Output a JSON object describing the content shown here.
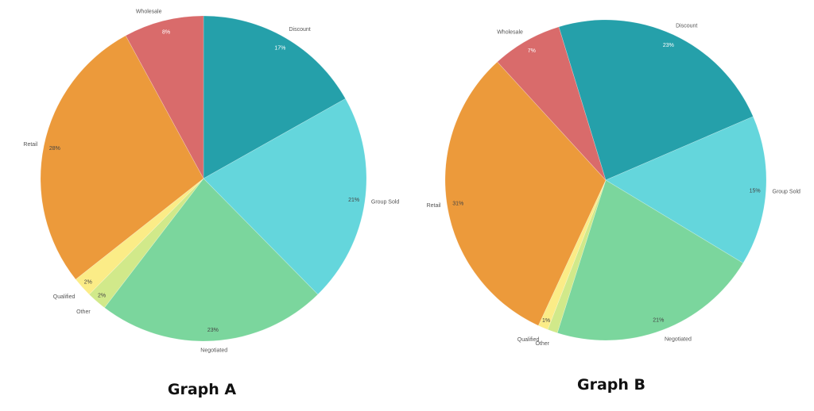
{
  "colors": {
    "Discount": "#25a0aa",
    "Group Sold": "#64d6dc",
    "Negotiated": "#7bd69d",
    "Other": "#d1e98a",
    "Qualified": "#fbec87",
    "Retail": "#ec9a3b",
    "Wholesale": "#d96b6b"
  },
  "chart_data": [
    {
      "type": "pie",
      "caption": "Graph A",
      "start_angle_deg": 0,
      "direction": "clockwise",
      "slices": [
        {
          "label": "Discount",
          "value": 17,
          "value_label": "17%"
        },
        {
          "label": "Group Sold",
          "value": 21,
          "value_label": "21%"
        },
        {
          "label": "Negotiated",
          "value": 23,
          "value_label": "23%"
        },
        {
          "label": "Other",
          "value": 2,
          "value_label": "2%"
        },
        {
          "label": "Qualified",
          "value": 2,
          "value_label": "2%"
        },
        {
          "label": "Retail",
          "value": 28,
          "value_label": "28%"
        },
        {
          "label": "Wholesale",
          "value": 8,
          "value_label": "8%"
        }
      ]
    },
    {
      "type": "pie",
      "caption": "Graph B",
      "start_angle_deg": -17,
      "direction": "clockwise",
      "slices": [
        {
          "label": "Discount",
          "value": 23,
          "value_label": "23%"
        },
        {
          "label": "Group Sold",
          "value": 15,
          "value_label": "15%"
        },
        {
          "label": "Negotiated",
          "value": 21,
          "value_label": "21%"
        },
        {
          "label": "Other",
          "value": 1,
          "value_label": ""
        },
        {
          "label": "Qualified",
          "value": 1,
          "value_label": "1%"
        },
        {
          "label": "Retail",
          "value": 31,
          "value_label": "31%"
        },
        {
          "label": "Wholesale",
          "value": 7,
          "value_label": "7%"
        }
      ]
    }
  ]
}
